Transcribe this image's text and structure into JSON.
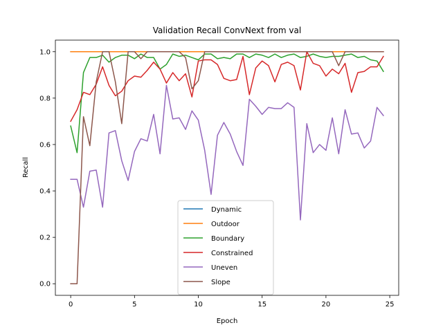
{
  "chart_data": {
    "type": "line",
    "title": "Validation Recall ConvNext from val",
    "xlabel": "Epoch",
    "ylabel": "Recall",
    "xlim": [
      -1.2,
      25.7
    ],
    "ylim": [
      -0.05,
      1.05
    ],
    "xticks": [
      0,
      5,
      10,
      15,
      20,
      25
    ],
    "yticks": [
      0.0,
      0.2,
      0.4,
      0.6,
      0.8,
      1.0
    ],
    "grid": false,
    "legend_position": "lower center",
    "x": [
      0,
      0.5,
      1,
      1.5,
      2,
      2.5,
      3,
      3.5,
      4,
      4.5,
      5,
      5.5,
      6,
      6.5,
      7,
      7.5,
      8,
      8.5,
      9,
      9.5,
      10,
      10.5,
      11,
      11.5,
      12,
      12.5,
      13,
      13.5,
      14,
      14.5,
      15,
      15.5,
      16,
      16.5,
      17,
      17.5,
      18,
      18.5,
      19,
      19.5,
      20,
      20.5,
      21,
      21.5,
      22,
      22.5,
      23,
      23.5,
      24,
      24.5
    ],
    "series": [
      {
        "name": "Dynamic",
        "color": "#1f77b4",
        "values": [
          1,
          1,
          1,
          1,
          1,
          1,
          1,
          1,
          1,
          1,
          1,
          1,
          1,
          1,
          1,
          1,
          1,
          1,
          1,
          1,
          1,
          1,
          1,
          1,
          1,
          1,
          1,
          1,
          1,
          1,
          1,
          1,
          1,
          1,
          1,
          1,
          1,
          1,
          1,
          1,
          1,
          1,
          1,
          1,
          1,
          1,
          1,
          1,
          1,
          1
        ]
      },
      {
        "name": "Outdoor",
        "color": "#ff7f0e",
        "values": [
          1,
          1,
          1,
          1,
          1,
          1,
          1,
          1,
          1,
          1,
          1,
          1,
          1,
          1,
          1,
          1,
          1,
          1,
          1,
          1,
          1,
          1,
          1,
          1,
          1,
          1,
          1,
          1,
          1,
          1,
          1,
          1,
          1,
          1,
          1,
          1,
          1,
          1,
          1,
          1,
          1,
          1,
          1,
          1,
          1,
          1,
          1,
          1,
          1,
          1
        ]
      },
      {
        "name": "Boundary",
        "color": "#2ca02c",
        "values": [
          0.68,
          0.565,
          0.91,
          0.975,
          0.975,
          0.985,
          0.955,
          0.975,
          0.985,
          0.985,
          0.97,
          0.99,
          0.975,
          0.975,
          0.925,
          0.945,
          0.99,
          0.98,
          0.985,
          0.975,
          0.965,
          0.99,
          0.99,
          0.97,
          0.975,
          0.97,
          0.99,
          0.99,
          0.975,
          0.99,
          0.985,
          0.975,
          0.99,
          0.975,
          0.985,
          0.99,
          0.975,
          0.98,
          0.99,
          0.98,
          0.975,
          0.98,
          0.98,
          0.985,
          0.99,
          0.975,
          0.98,
          0.965,
          0.96,
          0.915
        ]
      },
      {
        "name": "Constrained",
        "color": "#d62728",
        "values": [
          0.7,
          0.75,
          0.825,
          0.815,
          0.86,
          0.935,
          0.855,
          0.81,
          0.83,
          0.875,
          0.895,
          0.89,
          0.92,
          0.955,
          0.925,
          0.865,
          0.91,
          0.875,
          0.905,
          0.805,
          0.96,
          0.965,
          0.965,
          0.945,
          0.885,
          0.875,
          0.88,
          0.98,
          0.815,
          0.93,
          0.96,
          0.94,
          0.87,
          0.945,
          0.955,
          0.94,
          0.835,
          1.0,
          0.95,
          0.94,
          0.895,
          0.925,
          0.905,
          0.95,
          0.825,
          0.91,
          0.915,
          0.935,
          0.935,
          0.98
        ]
      },
      {
        "name": "Uneven",
        "color": "#9467bd",
        "values": [
          0.45,
          0.45,
          0.33,
          0.485,
          0.49,
          0.33,
          0.65,
          0.66,
          0.53,
          0.445,
          0.57,
          0.625,
          0.615,
          0.73,
          0.56,
          0.855,
          0.71,
          0.715,
          0.665,
          0.745,
          0.705,
          0.575,
          0.385,
          0.64,
          0.695,
          0.645,
          0.57,
          0.51,
          0.795,
          0.765,
          0.73,
          0.76,
          0.755,
          0.755,
          0.78,
          0.76,
          0.275,
          0.69,
          0.565,
          0.6,
          0.575,
          0.715,
          0.56,
          0.75,
          0.645,
          0.65,
          0.585,
          0.615,
          0.76,
          0.725
        ]
      },
      {
        "name": "Slope",
        "color": "#8c564b",
        "values": [
          0,
          0,
          0.72,
          0.595,
          0.87,
          1.0,
          1.0,
          0.87,
          0.69,
          1.0,
          1.0,
          0.97,
          1.0,
          1.0,
          1.0,
          1.0,
          1.0,
          1.0,
          0.975,
          0.84,
          0.875,
          1.0,
          1.0,
          1.0,
          1.0,
          1.0,
          1.0,
          1.0,
          1.0,
          1.0,
          1.0,
          1.0,
          1.0,
          1.0,
          1.0,
          1.0,
          1.0,
          1.0,
          1.0,
          1.0,
          1.0,
          1.0,
          0.94,
          1.0,
          1.0,
          1.0,
          1.0,
          1.0,
          1.0,
          1.0
        ]
      }
    ]
  }
}
